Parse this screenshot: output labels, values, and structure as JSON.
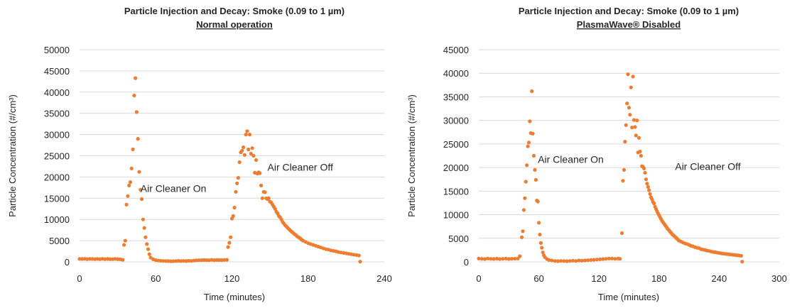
{
  "chart_data": [
    {
      "type": "scatter",
      "title": "Particle Injection and Decay: Smoke (0.09 to 1 µm)",
      "subtitle": "Normal operation",
      "xlabel": "Time (minutes)",
      "ylabel": "Particle Concentration (#/cm³)",
      "xlim": [
        0,
        240
      ],
      "ylim": [
        0,
        50000
      ],
      "xticks": [
        0,
        60,
        120,
        180,
        240
      ],
      "yticks": [
        0,
        5000,
        10000,
        15000,
        20000,
        25000,
        30000,
        35000,
        40000,
        45000,
        50000
      ],
      "xtick_labels": [
        "0",
        "60",
        "120",
        "180",
        "240"
      ],
      "ytick_labels": [
        "0",
        "5000",
        "10000",
        "15000",
        "20000",
        "25000",
        "30000",
        "35000",
        "40000",
        "45000",
        "50000"
      ],
      "grid": "horizontal",
      "marker_color": "#ED7D31",
      "annotations": [
        {
          "text": "Air Cleaner On",
          "x": 48,
          "y": 16500
        },
        {
          "text": "Air Cleaner Off",
          "x": 148,
          "y": 21500
        }
      ],
      "x": [
        0,
        2,
        4,
        6,
        8,
        10,
        12,
        14,
        16,
        18,
        20,
        22,
        24,
        26,
        28,
        30,
        32,
        34,
        35,
        36,
        37,
        38,
        39,
        40,
        41,
        42,
        43,
        44,
        45,
        46,
        47,
        48,
        49,
        50,
        51,
        52,
        53,
        54,
        55,
        56,
        58,
        60,
        62,
        64,
        66,
        68,
        70,
        72,
        74,
        76,
        78,
        80,
        82,
        84,
        86,
        88,
        90,
        92,
        94,
        96,
        98,
        100,
        102,
        104,
        106,
        108,
        110,
        112,
        114,
        116,
        117,
        118,
        119,
        120,
        121,
        122,
        123,
        124,
        125,
        126,
        127,
        128,
        129,
        130,
        131,
        132,
        133,
        134,
        135,
        136,
        137,
        138,
        139,
        140,
        141,
        142,
        143,
        144,
        145,
        146,
        147,
        148,
        149,
        150,
        151,
        152,
        153,
        154,
        155,
        156,
        157,
        158,
        159,
        160,
        161,
        162,
        163,
        164,
        165,
        166,
        167,
        168,
        169,
        170,
        171,
        172,
        173,
        174,
        175,
        176,
        178,
        180,
        182,
        184,
        186,
        188,
        190,
        192,
        194,
        196,
        198,
        200,
        202,
        204,
        206,
        208,
        210,
        212,
        214,
        216,
        218,
        220,
        221
      ],
      "y": [
        700,
        680,
        720,
        650,
        700,
        690,
        640,
        700,
        660,
        720,
        640,
        690,
        660,
        630,
        700,
        650,
        600,
        500,
        4000,
        5000,
        13500,
        15500,
        18000,
        18800,
        22000,
        26500,
        39200,
        43300,
        35300,
        29000,
        21200,
        17000,
        14800,
        10000,
        8000,
        5800,
        4200,
        3000,
        1800,
        1000,
        600,
        400,
        300,
        250,
        220,
        200,
        180,
        150,
        170,
        200,
        230,
        200,
        220,
        190,
        250,
        220,
        300,
        350,
        380,
        400,
        430,
        420,
        380,
        460,
        400,
        430,
        440,
        420,
        450,
        480,
        3500,
        4500,
        5800,
        10200,
        10800,
        12800,
        16500,
        18500,
        19800,
        23500,
        25800,
        26200,
        27000,
        25200,
        30000,
        30800,
        26500,
        30000,
        25500,
        26800,
        25000,
        21000,
        24000,
        20800,
        21100,
        20900,
        18000,
        15000,
        16500,
        16400,
        15000,
        14800,
        15000,
        14200,
        14000,
        13500,
        13000,
        12500,
        11800,
        11400,
        10800,
        10500,
        10000,
        9400,
        9000,
        8600,
        8300,
        8000,
        7700,
        7400,
        7100,
        6900,
        6600,
        6400,
        6100,
        5900,
        5700,
        5500,
        5200,
        5000,
        4700,
        4400,
        4200,
        4000,
        3800,
        3600,
        3400,
        3200,
        3000,
        2900,
        2700,
        2600,
        2500,
        2300,
        2200,
        2100,
        2000,
        1900,
        1800,
        1700,
        1600,
        1500,
        50
      ]
    },
    {
      "type": "scatter",
      "title": "Particle Injection and Decay: Smoke (0.09 to 1 µm)",
      "subtitle": "PlasmaWave® Disabled",
      "xlabel": "Time (minutes)",
      "ylabel": "Particle Concentration (#/cm³)",
      "xlim": [
        0,
        300
      ],
      "ylim": [
        0,
        45000
      ],
      "xticks": [
        0,
        60,
        120,
        180,
        240,
        300
      ],
      "yticks": [
        0,
        5000,
        10000,
        15000,
        20000,
        25000,
        30000,
        35000,
        40000,
        45000
      ],
      "xtick_labels": [
        "0",
        "60",
        "120",
        "180",
        "240",
        "300"
      ],
      "ytick_labels": [
        "0",
        "5000",
        "10000",
        "15000",
        "20000",
        "25000",
        "30000",
        "35000",
        "40000",
        "45000"
      ],
      "grid": "horizontal",
      "marker_color": "#ED7D31",
      "annotations": [
        {
          "text": "Air Cleaner On",
          "x": 59,
          "y": 21000
        },
        {
          "text": "Air Cleaner Off",
          "x": 196,
          "y": 19500
        }
      ],
      "x": [
        0,
        3,
        6,
        9,
        12,
        15,
        18,
        21,
        24,
        27,
        30,
        33,
        36,
        39,
        41,
        43,
        44,
        45,
        46,
        47,
        48,
        49,
        50,
        51,
        52,
        53,
        54,
        55,
        56,
        57,
        58,
        59,
        60,
        61,
        62,
        63,
        64,
        65,
        66,
        68,
        70,
        73,
        76,
        79,
        82,
        85,
        88,
        91,
        94,
        97,
        100,
        103,
        106,
        109,
        112,
        115,
        118,
        121,
        124,
        127,
        130,
        133,
        136,
        139,
        141,
        143,
        144,
        145,
        146,
        147,
        148,
        149,
        150,
        151,
        152,
        153,
        154,
        155,
        156,
        157,
        158,
        159,
        160,
        161,
        162,
        163,
        164,
        165,
        166,
        167,
        168,
        169,
        170,
        171,
        172,
        173,
        174,
        175,
        176,
        177,
        178,
        179,
        180,
        181,
        182,
        183,
        184,
        185,
        186,
        187,
        188,
        189,
        190,
        191,
        192,
        193,
        194,
        195,
        196,
        197,
        198,
        199,
        200,
        202,
        204,
        206,
        208,
        210,
        212,
        214,
        216,
        218,
        220,
        222,
        224,
        226,
        228,
        230,
        232,
        234,
        236,
        238,
        240,
        242,
        244,
        246,
        248,
        250,
        252,
        254,
        256,
        258,
        260,
        262,
        263
      ],
      "y": [
        700,
        650,
        600,
        700,
        650,
        620,
        680,
        600,
        650,
        700,
        620,
        660,
        680,
        700,
        1200,
        5200,
        6500,
        11000,
        13500,
        17000,
        20500,
        24500,
        25300,
        29800,
        27300,
        36200,
        27200,
        22500,
        19500,
        17400,
        13000,
        12800,
        8300,
        5800,
        4000,
        3000,
        2000,
        1400,
        1000,
        600,
        400,
        300,
        200,
        150,
        200,
        180,
        150,
        200,
        250,
        200,
        300,
        250,
        300,
        350,
        400,
        450,
        500,
        550,
        600,
        650,
        700,
        700,
        650,
        700,
        650,
        6100,
        17200,
        19500,
        25500,
        29000,
        33600,
        39800,
        32700,
        31200,
        37000,
        28500,
        39300,
        30100,
        28600,
        26800,
        30000,
        23200,
        26300,
        23400,
        22500,
        20300,
        20200,
        19800,
        18900,
        17500,
        16600,
        15900,
        15200,
        14400,
        13700,
        13300,
        12700,
        12400,
        11700,
        11200,
        10700,
        10300,
        9900,
        9500,
        9100,
        8700,
        8400,
        8100,
        7800,
        7500,
        7200,
        6900,
        6700,
        6400,
        6200,
        5900,
        5700,
        5500,
        5300,
        5100,
        4900,
        4700,
        4500,
        4300,
        4100,
        3900,
        3800,
        3600,
        3400,
        3300,
        3100,
        3000,
        2900,
        2700,
        2600,
        2500,
        2400,
        2300,
        2200,
        2100,
        2050,
        1950,
        1900,
        1800,
        1750,
        1700,
        1650,
        1600,
        1550,
        1500,
        1450,
        1400,
        1350,
        1300,
        50
      ]
    }
  ]
}
